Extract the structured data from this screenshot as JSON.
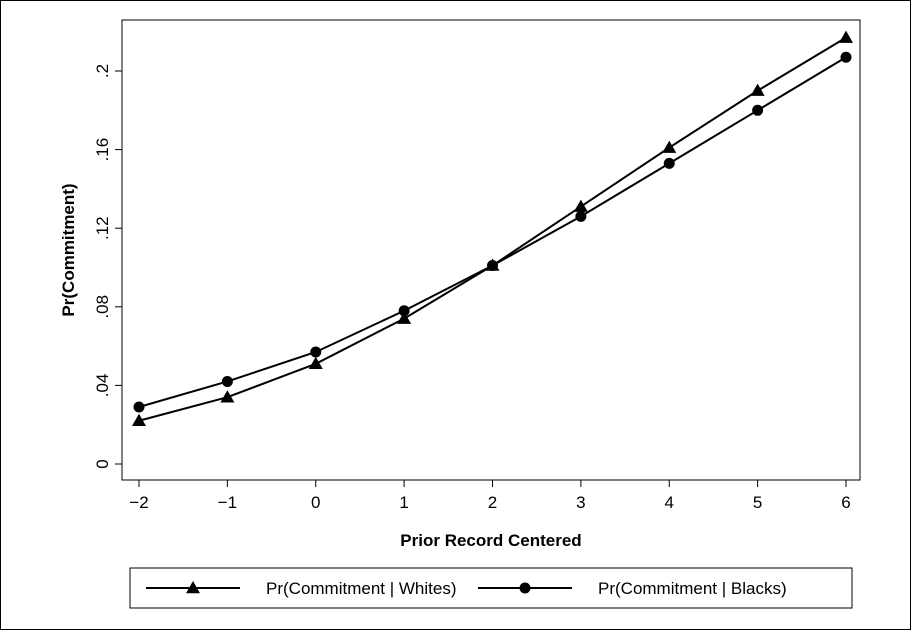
{
  "chart_data": {
    "type": "line",
    "title": "",
    "xlabel": "Prior Record Centered",
    "ylabel": "Pr(Commitment)",
    "x": [
      -2,
      -1,
      0,
      1,
      2,
      3,
      4,
      5,
      6
    ],
    "x_tick_labels": [
      "−2",
      "−1",
      "0",
      "1",
      "2",
      "3",
      "4",
      "5",
      "6"
    ],
    "y_ticks": [
      0,
      0.04,
      0.08,
      0.12,
      0.16,
      0.2
    ],
    "y_tick_labels": [
      "0",
      ".04",
      ".08",
      ".12",
      ".16",
      ".2"
    ],
    "xlim": [
      -2,
      6
    ],
    "ylim": [
      0,
      0.21
    ],
    "grid": false,
    "legend_position": "bottom",
    "series": [
      {
        "name": "Pr(Commitment | Whites)",
        "marker": "triangle",
        "color": "#000000",
        "values": [
          0.022,
          0.034,
          0.051,
          0.074,
          0.101,
          0.131,
          0.161,
          0.19,
          0.217
        ]
      },
      {
        "name": "Pr(Commitment | Blacks)",
        "marker": "circle",
        "color": "#000000",
        "values": [
          0.029,
          0.042,
          0.057,
          0.078,
          0.101,
          0.126,
          0.153,
          0.18,
          0.207
        ]
      }
    ]
  }
}
